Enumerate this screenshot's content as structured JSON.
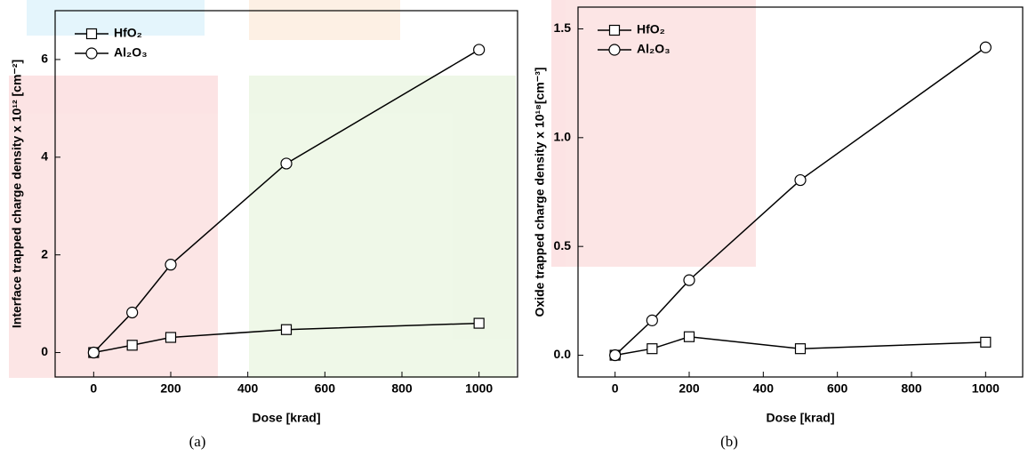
{
  "chart_data": [
    {
      "type": "line",
      "caption": "(a)",
      "x_label": "Dose [krad]",
      "y_label": "Interface trapped charge density x 10¹² [cm⁻²]",
      "x": [
        0,
        100,
        200,
        500,
        1000
      ],
      "series": [
        {
          "name": "HfO₂",
          "color": "#000000",
          "marker": "square",
          "values": [
            0,
            0.15,
            0.31,
            0.47,
            0.6
          ]
        },
        {
          "name": "Al₂O₃",
          "color": "#000000",
          "marker": "circle",
          "values": [
            0,
            0.82,
            1.8,
            3.87,
            6.2
          ]
        }
      ],
      "xlim": [
        -100,
        1100
      ],
      "xticks": [
        0,
        200,
        400,
        600,
        800,
        1000
      ],
      "ylim": [
        -0.5,
        7
      ],
      "yticks": [
        0,
        2,
        4,
        6
      ],
      "legend": "upper-left"
    },
    {
      "type": "line",
      "caption": "(b)",
      "x_label": "Dose [krad]",
      "y_label": "Oxide trapped charge density x 10¹⁸[cm⁻³]",
      "x": [
        0,
        100,
        200,
        500,
        1000
      ],
      "series": [
        {
          "name": "HfO₂",
          "color": "#000000",
          "marker": "square",
          "values": [
            0,
            0.03,
            0.085,
            0.03,
            0.06
          ]
        },
        {
          "name": "Al₂O₃",
          "color": "#000000",
          "marker": "circle",
          "values": [
            0,
            0.16,
            0.345,
            0.805,
            1.415
          ]
        }
      ],
      "xlim": [
        -100,
        1100
      ],
      "xticks": [
        0,
        200,
        400,
        600,
        800,
        1000
      ],
      "ylim": [
        -0.1,
        1.6
      ],
      "yticks": [
        {
          "value": 0,
          "label": "0.0"
        },
        0.5,
        {
          "value": 1,
          "label": "1.0"
        },
        1.5
      ],
      "legend": "upper-left"
    }
  ]
}
